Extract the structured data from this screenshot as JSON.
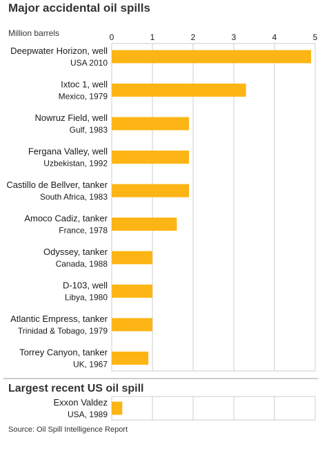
{
  "title": "Major accidental oil spills",
  "units_label": "Million barrels",
  "recent_title": "Largest recent US oil spill",
  "source": "Source: Oil Spill Intelligence Report",
  "colors": {
    "bar": "#FDB515",
    "grid": "#cccccc",
    "axis": "#999999"
  },
  "chart_data": [
    {
      "type": "bar",
      "orientation": "horizontal",
      "xlim": [
        0,
        5
      ],
      "ticks": [
        "0",
        "1",
        "2",
        "3",
        "4",
        "5"
      ],
      "grid": true,
      "items": [
        {
          "name": "Deepwater Horizon, well",
          "detail": "USA 2010",
          "value": 4.9
        },
        {
          "name": "Ixtoc 1, well",
          "detail": "Mexico, 1979",
          "value": 3.3
        },
        {
          "name": "Nowruz Field, well",
          "detail": "Gulf, 1983",
          "value": 1.9
        },
        {
          "name": "Fergana Valley, well",
          "detail": "Uzbekistan, 1992",
          "value": 1.9
        },
        {
          "name": "Castillo de Bellver, tanker",
          "detail": "South Africa, 1983",
          "value": 1.9
        },
        {
          "name": "Amoco Cadiz, tanker",
          "detail": "France, 1978",
          "value": 1.6
        },
        {
          "name": "Odyssey, tanker",
          "detail": "Canada, 1988",
          "value": 1.0
        },
        {
          "name": "D-103, well",
          "detail": "Libya, 1980",
          "value": 1.0
        },
        {
          "name": "Atlantic Empress, tanker",
          "detail": "Trinidad & Tobago, 1979",
          "value": 1.0
        },
        {
          "name": "Torrey Canyon, tanker",
          "detail": "UK, 1967",
          "value": 0.9
        }
      ]
    },
    {
      "type": "bar",
      "orientation": "horizontal",
      "xlim": [
        0,
        5
      ],
      "grid": true,
      "items": [
        {
          "name": "Exxon Valdez",
          "detail": "USA, 1989",
          "value": 0.26
        }
      ]
    }
  ]
}
